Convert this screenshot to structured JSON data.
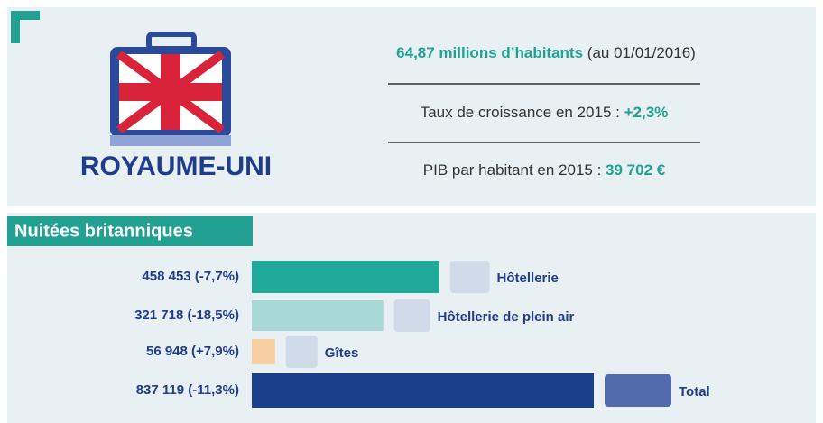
{
  "header": {
    "country": "ROYAUME-UNI",
    "population": "64,87 millions d’habitants",
    "population_date": "(au 01/01/2016)",
    "growth_label": "Taux de croissance en 2015 :",
    "growth_value": "+2,3%",
    "gdp_label": "PIB par habitant en 2015 :",
    "gdp_value": "39 702 €"
  },
  "chart_data": {
    "type": "bar",
    "orientation": "horizontal",
    "title": "Nuitées britanniques",
    "categories": [
      "Hôtellerie",
      "Hôtellerie de plein air",
      "Gîtes",
      "Total"
    ],
    "values": [
      458453,
      321718,
      56948,
      837119
    ],
    "value_labels": [
      "458 453",
      "321 718",
      "56 948",
      "837 119"
    ],
    "change_labels": [
      "(-7,7%)",
      "(-18,5%)",
      "(+7,9%)",
      "(-11,3%)"
    ],
    "colors": [
      "#1fa99a",
      "#a8d8d8",
      "#f8cfa3",
      "#1c3f8c"
    ]
  }
}
